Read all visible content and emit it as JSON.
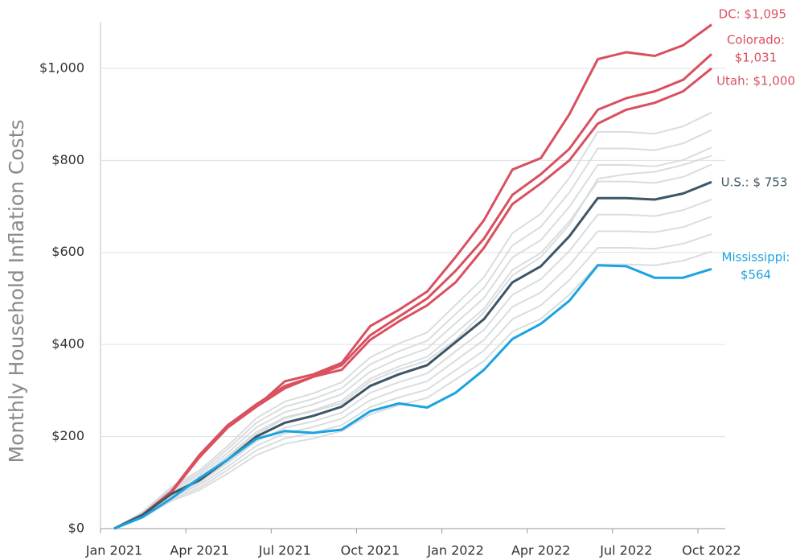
{
  "chart_data": {
    "type": "line",
    "ylabel": "Monthly Household Inflation Costs",
    "categories": [
      "Jan 2021",
      null,
      null,
      "Apr 2021",
      null,
      null,
      "Jul 2021",
      null,
      null,
      "Oct 2021",
      null,
      null,
      "Jan 2022",
      null,
      null,
      "Apr 2022",
      null,
      null,
      "Jul 2022",
      null,
      null,
      "Oct 2022"
    ],
    "ylim": [
      0,
      1100
    ],
    "yticks": [
      {
        "value": 0,
        "label": "$0"
      },
      {
        "value": 200,
        "label": "$200"
      },
      {
        "value": 400,
        "label": "$400"
      },
      {
        "value": 600,
        "label": "$600"
      },
      {
        "value": 800,
        "label": "$800"
      },
      {
        "value": 1000,
        "label": "$1,000"
      }
    ],
    "grid": true,
    "series": [
      {
        "color": "#d5d9dc",
        "values": [
          0,
          36,
          90,
          126,
          180,
          240,
          276,
          294,
          318,
          372,
          402,
          426,
          486,
          546,
          642,
          684,
          762,
          862,
          862,
          858,
          874,
          904
        ]
      },
      {
        "color": "#d5d9dc",
        "values": [
          0,
          35,
          86,
          121,
          173,
          230,
          265,
          282,
          305,
          357,
          385,
          408,
          466,
          523,
          615,
          656,
          730,
          826,
          826,
          822,
          837,
          866
        ]
      },
      {
        "color": "#d5d9dc",
        "values": [
          0,
          33,
          83,
          116,
          165,
          220,
          253,
          270,
          292,
          341,
          369,
          391,
          446,
          501,
          589,
          627,
          699,
          790,
          790,
          787,
          801,
          828
        ]
      },
      {
        "color": "#d5d9dc",
        "values": [
          0,
          30,
          78,
          110,
          155,
          205,
          240,
          255,
          272,
          320,
          345,
          365,
          410,
          470,
          550,
          590,
          660,
          760,
          770,
          775,
          790,
          810
        ]
      },
      {
        "color": "#d5d9dc",
        "values": [
          0,
          32,
          79,
          110,
          158,
          210,
          242,
          257,
          278,
          326,
          352,
          373,
          425,
          478,
          562,
          599,
          667,
          754,
          754,
          751,
          764,
          791
        ]
      },
      {
        "color": "#d5d9dc",
        "values": [
          0,
          29,
          71,
          100,
          143,
          190,
          219,
          233,
          252,
          295,
          318,
          337,
          385,
          432,
          508,
          542,
          603,
          682,
          682,
          679,
          692,
          715
        ]
      },
      {
        "color": "#d5d9dc",
        "values": [
          0,
          27,
          68,
          95,
          135,
          180,
          207,
          221,
          239,
          279,
          302,
          320,
          365,
          410,
          482,
          513,
          572,
          646,
          646,
          644,
          655,
          678
        ]
      },
      {
        "color": "#d5d9dc",
        "values": [
          0,
          26,
          64,
          89,
          128,
          170,
          196,
          208,
          225,
          264,
          285,
          302,
          344,
          387,
          455,
          485,
          540,
          610,
          610,
          608,
          619,
          640
        ]
      },
      {
        "color": "#d5d9dc",
        "values": [
          0,
          24,
          60,
          84,
          120,
          160,
          184,
          196,
          212,
          248,
          268,
          284,
          324,
          364,
          428,
          456,
          508,
          574,
          574,
          572,
          582,
          602
        ]
      },
      {
        "color": "#d9505f",
        "label": [
          "DC: $1,095"
        ],
        "values": [
          0,
          30,
          80,
          160,
          225,
          265,
          320,
          335,
          360,
          440,
          475,
          515,
          590,
          670,
          780,
          805,
          900,
          1020,
          1035,
          1027,
          1050,
          1095
        ]
      },
      {
        "color": "#d9505f",
        "label": [
          "Colorado:",
          "$1,031"
        ],
        "values": [
          0,
          30,
          80,
          160,
          225,
          270,
          310,
          330,
          355,
          420,
          460,
          500,
          560,
          630,
          725,
          770,
          825,
          910,
          935,
          950,
          975,
          1031
        ]
      },
      {
        "color": "#d9505f",
        "label": [
          "Utah: $1,000"
        ],
        "values": [
          0,
          28,
          78,
          155,
          220,
          265,
          305,
          330,
          345,
          410,
          450,
          485,
          535,
          610,
          705,
          750,
          800,
          880,
          910,
          925,
          950,
          1000
        ]
      },
      {
        "color": "#3d5666",
        "label": [
          "U.S.: $ 753"
        ],
        "values": [
          0,
          30,
          75,
          105,
          150,
          200,
          230,
          245,
          265,
          310,
          335,
          355,
          405,
          455,
          535,
          570,
          635,
          718,
          718,
          715,
          728,
          753
        ]
      },
      {
        "color": "#1ba3e0",
        "label": [
          "Mississippi:",
          "$564"
        ],
        "values": [
          0,
          25,
          65,
          110,
          150,
          195,
          212,
          208,
          215,
          255,
          272,
          263,
          295,
          345,
          412,
          445,
          495,
          572,
          570,
          545,
          545,
          564
        ]
      }
    ]
  }
}
